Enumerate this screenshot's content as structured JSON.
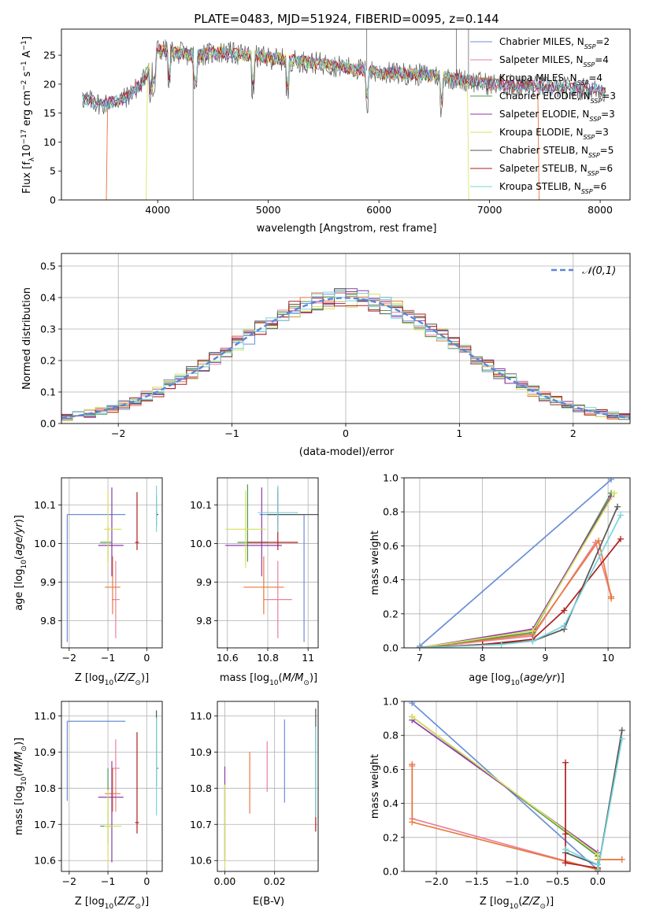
{
  "title": "PLATE=0483, MJD=51924, FIBERID=0095, z=0.144",
  "colors": {
    "Chabrier MILES": "#6a8fd8",
    "Salpeter MILES": "#e8829a",
    "Kroupa MILES": "#e87a3a",
    "Chabrier ELODIE": "#4e9a4e",
    "Salpeter ELODIE": "#8e3aa8",
    "Kroupa ELODIE": "#d6e05a",
    "Chabrier STELIB": "#555555",
    "Salpeter STELIB": "#b01e1e",
    "Kroupa STELIB": "#77d4dc",
    "normal": "#5b86d8"
  },
  "legend": [
    {
      "key": "Chabrier MILES",
      "pre": "Chabrier MILES, N",
      "n": "2"
    },
    {
      "key": "Salpeter MILES",
      "pre": "Salpeter MILES, N",
      "n": "4"
    },
    {
      "key": "Kroupa MILES",
      "pre": "Kroupa MILES, N",
      "n": "4"
    },
    {
      "key": "Chabrier ELODIE",
      "pre": "Chabrier ELODIE, N",
      "n": "3"
    },
    {
      "key": "Salpeter ELODIE",
      "pre": "Salpeter ELODIE, N",
      "n": "3"
    },
    {
      "key": "Kroupa ELODIE",
      "pre": "Kroupa ELODIE, N",
      "n": "3"
    },
    {
      "key": "Chabrier STELIB",
      "pre": "Chabrier STELIB, N",
      "n": "5"
    },
    {
      "key": "Salpeter STELIB",
      "pre": "Salpeter STELIB, N",
      "n": "6"
    },
    {
      "key": "Kroupa STELIB",
      "pre": "Kroupa STELIB, N",
      "n": "6"
    }
  ],
  "chart_data": [
    {
      "id": "spectrum",
      "type": "line",
      "xlabel": "wavelength [Angstrom, rest frame]",
      "ylabel": "Flux [f_λ 10^-17 erg cm^-2 s^-1 A^-1]",
      "xlim": [
        3130,
        8270
      ],
      "ylim": [
        0,
        29.5
      ],
      "xticks": [
        4000,
        5000,
        6000,
        7000,
        8000
      ],
      "yticks": [
        0,
        5,
        10,
        15,
        20,
        25
      ],
      "continuum": [
        [
          3320,
          17.5
        ],
        [
          3500,
          16.5
        ],
        [
          3700,
          17.5
        ],
        [
          3850,
          20
        ],
        [
          4000,
          26
        ],
        [
          4300,
          25
        ],
        [
          4600,
          25.5
        ],
        [
          5000,
          24.5
        ],
        [
          5500,
          23.5
        ],
        [
          6000,
          22
        ],
        [
          6500,
          21.5
        ],
        [
          7000,
          20
        ],
        [
          7500,
          19.5
        ],
        [
          8000,
          19
        ],
        [
          8050,
          18.5
        ]
      ],
      "model_edges": {
        "Kroupa MILES": [
          3540,
          7440
        ],
        "Salpeter MILES": [
          3540,
          7440
        ],
        "Kroupa ELODIE": [
          3900,
          6800
        ]
      },
      "grid": false
    },
    {
      "id": "residuals",
      "type": "histogram",
      "xlabel": "(data-model)/error",
      "ylabel": "Normed distribution",
      "xlim": [
        -2.5,
        2.5
      ],
      "ylim": [
        0,
        0.54
      ],
      "xticks": [
        -2,
        -1,
        0,
        1,
        2
      ],
      "yticks": [
        0.0,
        0.1,
        0.2,
        0.3,
        0.4,
        0.5
      ],
      "legend_label": "𝒩(0,1)",
      "legend_position": "top-right",
      "grid": true
    },
    {
      "id": "age-vs-Z",
      "type": "scatter",
      "xlabel": "Z [log10(Z/Z☉)]",
      "ylabel": "age [log10(age/yr)]",
      "xlim": [
        -2.2,
        0.4
      ],
      "ylim": [
        9.73,
        10.17
      ],
      "xticks": [
        -2,
        -1,
        0
      ],
      "yticks": [
        9.8,
        9.9,
        10.0,
        10.1
      ],
      "points": [
        {
          "key": "Chabrier MILES",
          "x": -2.05,
          "y": 10.075,
          "xe": [
            0,
            1.5
          ],
          "ye": [
            0.33,
            0
          ]
        },
        {
          "key": "Salpeter MILES",
          "x": -0.8,
          "y": 9.855,
          "xe": [
            0.1,
            0.1
          ],
          "ye": [
            0.1,
            0.1
          ]
        },
        {
          "key": "Kroupa MILES",
          "x": -0.88,
          "y": 9.887,
          "xe": [
            0.2,
            0.2
          ],
          "ye": [
            0.07,
            0.08
          ]
        },
        {
          "key": "Chabrier ELODIE",
          "x": -1.0,
          "y": 10.003,
          "xe": [
            0.2,
            0.1
          ],
          "ye": [
            0.05,
            0.04
          ]
        },
        {
          "key": "Salpeter ELODIE",
          "x": -0.9,
          "y": 9.995,
          "xe": [
            0.35,
            0.3
          ],
          "ye": [
            0.08,
            0.15
          ]
        },
        {
          "key": "Kroupa ELODIE",
          "x": -1.0,
          "y": 10.037,
          "xe": [
            0.1,
            0.35
          ],
          "ye": [
            0.1,
            0.1
          ]
        },
        {
          "key": "Chabrier STELIB",
          "x": 0.25,
          "y": 10.075,
          "xe": [
            0,
            0.05
          ],
          "ye": [
            0.03,
            0.05
          ]
        },
        {
          "key": "Salpeter STELIB",
          "x": -0.25,
          "y": 10.003,
          "xe": [
            0.05,
            0.05
          ],
          "ye": [
            0.02,
            0.13
          ]
        },
        {
          "key": "Kroupa STELIB",
          "x": 0.25,
          "y": 10.08,
          "xe": [
            0,
            0.03
          ],
          "ye": [
            0.05,
            0.07
          ]
        }
      ],
      "grid": true
    },
    {
      "id": "age-vs-mass",
      "type": "scatter",
      "xlabel": "mass [log10(M/M☉)]",
      "ylabel": "",
      "xlim": [
        10.55,
        11.05
      ],
      "ylim": [
        9.73,
        10.17
      ],
      "xticks": [
        10.6,
        10.8,
        11.0
      ],
      "yticks": [
        9.8,
        9.9,
        10.0,
        10.1
      ],
      "points": [
        {
          "key": "Chabrier MILES",
          "x": 10.98,
          "y": 10.075,
          "xe": [
            0.22,
            0
          ],
          "ye": [
            0.33,
            0
          ]
        },
        {
          "key": "Salpeter MILES",
          "x": 10.85,
          "y": 9.855,
          "xe": [
            0.07,
            0.07
          ],
          "ye": [
            0.1,
            0.1
          ]
        },
        {
          "key": "Kroupa MILES",
          "x": 10.78,
          "y": 9.887,
          "xe": [
            0.1,
            0.1
          ],
          "ye": [
            0.07,
            0.08
          ]
        },
        {
          "key": "Chabrier ELODIE",
          "x": 10.7,
          "y": 10.003,
          "xe": [
            0.05,
            0.1
          ],
          "ye": [
            0.05,
            0.15
          ]
        },
        {
          "key": "Salpeter ELODIE",
          "x": 10.77,
          "y": 9.995,
          "xe": [
            0.18,
            0.1
          ],
          "ye": [
            0.08,
            0.15
          ]
        },
        {
          "key": "Kroupa ELODIE",
          "x": 10.69,
          "y": 10.037,
          "xe": [
            0.1,
            0.1
          ],
          "ye": [
            0.1,
            0.1
          ]
        },
        {
          "key": "Chabrier STELIB",
          "x": 10.85,
          "y": 10.075,
          "xe": [
            0.05,
            0.2
          ],
          "ye": [
            0.03,
            0.07
          ]
        },
        {
          "key": "Salpeter STELIB",
          "x": 10.85,
          "y": 10.003,
          "xe": [
            0.15,
            0.1
          ],
          "ye": [
            0.02,
            0.13
          ]
        },
        {
          "key": "Kroupa STELIB",
          "x": 10.85,
          "y": 10.08,
          "xe": [
            0.1,
            0.1
          ],
          "ye": [
            0.05,
            0.07
          ]
        }
      ],
      "grid": true
    },
    {
      "id": "mass-weight-vs-age",
      "type": "line",
      "xlabel": "age [log10(age/yr)]",
      "ylabel": "mass weight",
      "xlim": [
        6.75,
        10.35
      ],
      "ylim": [
        0,
        1.0
      ],
      "xticks": [
        7,
        8,
        9,
        10
      ],
      "yticks": [
        0.0,
        0.2,
        0.4,
        0.6,
        0.8,
        1.0
      ],
      "series": [
        {
          "key": "Chabrier MILES",
          "x": [
            7.0,
            10.05
          ],
          "y": [
            0.01,
            0.99
          ]
        },
        {
          "key": "Salpeter MILES",
          "x": [
            7.0,
            8.8,
            9.8,
            10.05,
            10.05
          ],
          "y": [
            0.0,
            0.07,
            0.62,
            0.3,
            0.3
          ]
        },
        {
          "key": "Kroupa MILES",
          "x": [
            7.0,
            8.8,
            9.85,
            10.05,
            10.05
          ],
          "y": [
            0.0,
            0.08,
            0.63,
            0.3,
            0.29
          ]
        },
        {
          "key": "Chabrier ELODIE",
          "x": [
            7.0,
            8.8,
            10.05
          ],
          "y": [
            0.0,
            0.09,
            0.91
          ]
        },
        {
          "key": "Salpeter ELODIE",
          "x": [
            7.0,
            8.8,
            10.05
          ],
          "y": [
            0.0,
            0.11,
            0.89
          ]
        },
        {
          "key": "Kroupa ELODIE",
          "x": [
            7.0,
            8.8,
            10.1
          ],
          "y": [
            0.0,
            0.1,
            0.91
          ]
        },
        {
          "key": "Chabrier STELIB",
          "x": [
            7.0,
            8.0,
            8.8,
            9.3,
            10.15
          ],
          "y": [
            0.0,
            0.02,
            0.04,
            0.11,
            0.83
          ]
        },
        {
          "key": "Salpeter STELIB",
          "x": [
            7.0,
            8.0,
            8.8,
            9.3,
            10.2
          ],
          "y": [
            0.0,
            0.02,
            0.05,
            0.22,
            0.64
          ]
        },
        {
          "key": "Kroupa STELIB",
          "x": [
            7.0,
            8.3,
            8.8,
            9.3,
            10.2
          ],
          "y": [
            0.0,
            0.02,
            0.04,
            0.13,
            0.78
          ]
        }
      ],
      "grid": true
    },
    {
      "id": "mass-vs-Z",
      "type": "scatter",
      "xlabel": "Z [log10(Z/Z☉)]",
      "ylabel": "mass [log10(M/M☉)]",
      "xlim": [
        -2.2,
        0.4
      ],
      "ylim": [
        10.57,
        11.04
      ],
      "xticks": [
        -2,
        -1,
        0
      ],
      "yticks": [
        10.6,
        10.7,
        10.8,
        10.9,
        11.0
      ],
      "points": [
        {
          "key": "Chabrier MILES",
          "x": -2.05,
          "y": 10.985,
          "xe": [
            0,
            1.5
          ],
          "ye": [
            0.22,
            0
          ]
        },
        {
          "key": "Salpeter MILES",
          "x": -0.8,
          "y": 10.855,
          "xe": [
            0.1,
            0.1
          ],
          "ye": [
            0.12,
            0.08
          ]
        },
        {
          "key": "Kroupa MILES",
          "x": -0.88,
          "y": 10.785,
          "xe": [
            0.2,
            0.2
          ],
          "ye": [
            0.05,
            0.07
          ]
        },
        {
          "key": "Chabrier ELODIE",
          "x": -1.0,
          "y": 10.695,
          "xe": [
            0.2,
            0.1
          ],
          "ye": [
            0.05,
            0.16
          ]
        },
        {
          "key": "Salpeter ELODIE",
          "x": -0.9,
          "y": 10.775,
          "xe": [
            0.35,
            0.3
          ],
          "ye": [
            0.18,
            0.1
          ]
        },
        {
          "key": "Kroupa ELODIE",
          "x": -1.0,
          "y": 10.695,
          "xe": [
            0.1,
            0.35
          ],
          "ye": [
            0.1,
            0.1
          ]
        },
        {
          "key": "Chabrier STELIB",
          "x": 0.25,
          "y": 10.855,
          "xe": [
            0,
            0.05
          ],
          "ye": [
            0.05,
            0.16
          ]
        },
        {
          "key": "Salpeter STELIB",
          "x": -0.25,
          "y": 10.705,
          "xe": [
            0.05,
            0.05
          ],
          "ye": [
            0.03,
            0.25
          ]
        },
        {
          "key": "Kroupa STELIB",
          "x": 0.25,
          "y": 10.855,
          "xe": [
            0,
            0.03
          ],
          "ye": [
            0.13,
            0.14
          ]
        }
      ],
      "grid": true
    },
    {
      "id": "mass-vs-EBV",
      "type": "scatter",
      "xlabel": "E(B-V)",
      "ylabel": "",
      "xlim": [
        -0.003,
        0.0375
      ],
      "ylim": [
        10.57,
        11.04
      ],
      "xticks": [
        0.0,
        0.02
      ],
      "xticklabels": [
        "0.00",
        "0.02"
      ],
      "yticks": [
        10.6,
        10.7,
        10.8,
        10.9,
        11.0
      ],
      "points": [
        {
          "key": "Chabrier MILES",
          "x": 0.024,
          "y": 10.87,
          "xe": [
            0,
            0
          ],
          "ye": [
            0.11,
            0.12
          ]
        },
        {
          "key": "Salpeter MILES",
          "x": 0.017,
          "y": 10.86,
          "xe": [
            0,
            0
          ],
          "ye": [
            0.07,
            0.07
          ]
        },
        {
          "key": "Kroupa MILES",
          "x": 0.01,
          "y": 10.82,
          "xe": [
            0,
            0
          ],
          "ye": [
            0.09,
            0.08
          ]
        },
        {
          "key": "Chabrier ELODIE",
          "x": 0.0,
          "y": 10.7,
          "xe": [
            0,
            0
          ],
          "ye": [
            0.1,
            0.11
          ]
        },
        {
          "key": "Salpeter ELODIE",
          "x": 0.0,
          "y": 10.78,
          "xe": [
            0,
            0
          ],
          "ye": [
            0.18,
            0.08
          ]
        },
        {
          "key": "Kroupa ELODIE",
          "x": 0.0,
          "y": 10.7,
          "xe": [
            0,
            0
          ],
          "ye": [
            0.12,
            0.11
          ]
        },
        {
          "key": "Chabrier STELIB",
          "x": 0.0365,
          "y": 10.9,
          "xe": [
            0,
            0
          ],
          "ye": [
            0.15,
            0.12
          ]
        },
        {
          "key": "Salpeter STELIB",
          "x": 0.0365,
          "y": 10.7,
          "xe": [
            0,
            0
          ],
          "ye": [
            0.02,
            0.05
          ]
        },
        {
          "key": "Kroupa STELIB",
          "x": 0.0365,
          "y": 10.85,
          "xe": [
            0,
            0
          ],
          "ye": [
            0.13,
            0.12
          ]
        }
      ],
      "grid": true
    },
    {
      "id": "mass-weight-vs-Z",
      "type": "line",
      "xlabel": "Z [log10(Z/Z☉)]",
      "ylabel": "mass weight",
      "xlim": [
        -2.4,
        0.4
      ],
      "ylim": [
        0,
        1.0
      ],
      "xticks": [
        -2.0,
        -1.5,
        -1.0,
        -0.5,
        0.0
      ],
      "xticklabels": [
        "−2.0",
        "−1.5",
        "−1.0",
        "−0.5",
        "0.0"
      ],
      "yticks": [
        0.0,
        0.2,
        0.4,
        0.6,
        0.8,
        1.0
      ],
      "series": [
        {
          "key": "Chabrier MILES",
          "x": [
            -2.3,
            0.0
          ],
          "y": [
            0.99,
            0.01
          ]
        },
        {
          "key": "Salpeter MILES",
          "x": [
            -2.3,
            -2.3,
            0.0,
            0.0,
            0.3
          ],
          "y": [
            0.62,
            0.31,
            0.01,
            0.07,
            0.07
          ]
        },
        {
          "key": "Kroupa MILES",
          "x": [
            -2.3,
            -2.3,
            0.0,
            0.0,
            0.3
          ],
          "y": [
            0.63,
            0.29,
            0.01,
            0.07,
            0.07
          ]
        },
        {
          "key": "Chabrier ELODIE",
          "x": [
            -2.3,
            0.0,
            0.0
          ],
          "y": [
            0.91,
            0.09,
            0.0
          ]
        },
        {
          "key": "Salpeter ELODIE",
          "x": [
            -2.3,
            0.0,
            0.0
          ],
          "y": [
            0.89,
            0.11,
            0.0
          ]
        },
        {
          "key": "Kroupa ELODIE",
          "x": [
            -2.3,
            0.0,
            0.0
          ],
          "y": [
            0.91,
            0.1,
            0.0
          ]
        },
        {
          "key": "Chabrier STELIB",
          "x": [
            -0.4,
            0.0,
            0.0,
            0.0,
            0.3
          ],
          "y": [
            0.11,
            0.04,
            0.02,
            0.0,
            0.83
          ]
        },
        {
          "key": "Salpeter STELIB",
          "x": [
            -0.4,
            -0.4,
            -0.4,
            0.0,
            0.0
          ],
          "y": [
            0.64,
            0.22,
            0.05,
            0.02,
            0.0
          ]
        },
        {
          "key": "Kroupa STELIB",
          "x": [
            -0.4,
            0.0,
            0.0,
            0.3
          ],
          "y": [
            0.13,
            0.04,
            0.0,
            0.78
          ]
        }
      ],
      "grid": true
    }
  ]
}
